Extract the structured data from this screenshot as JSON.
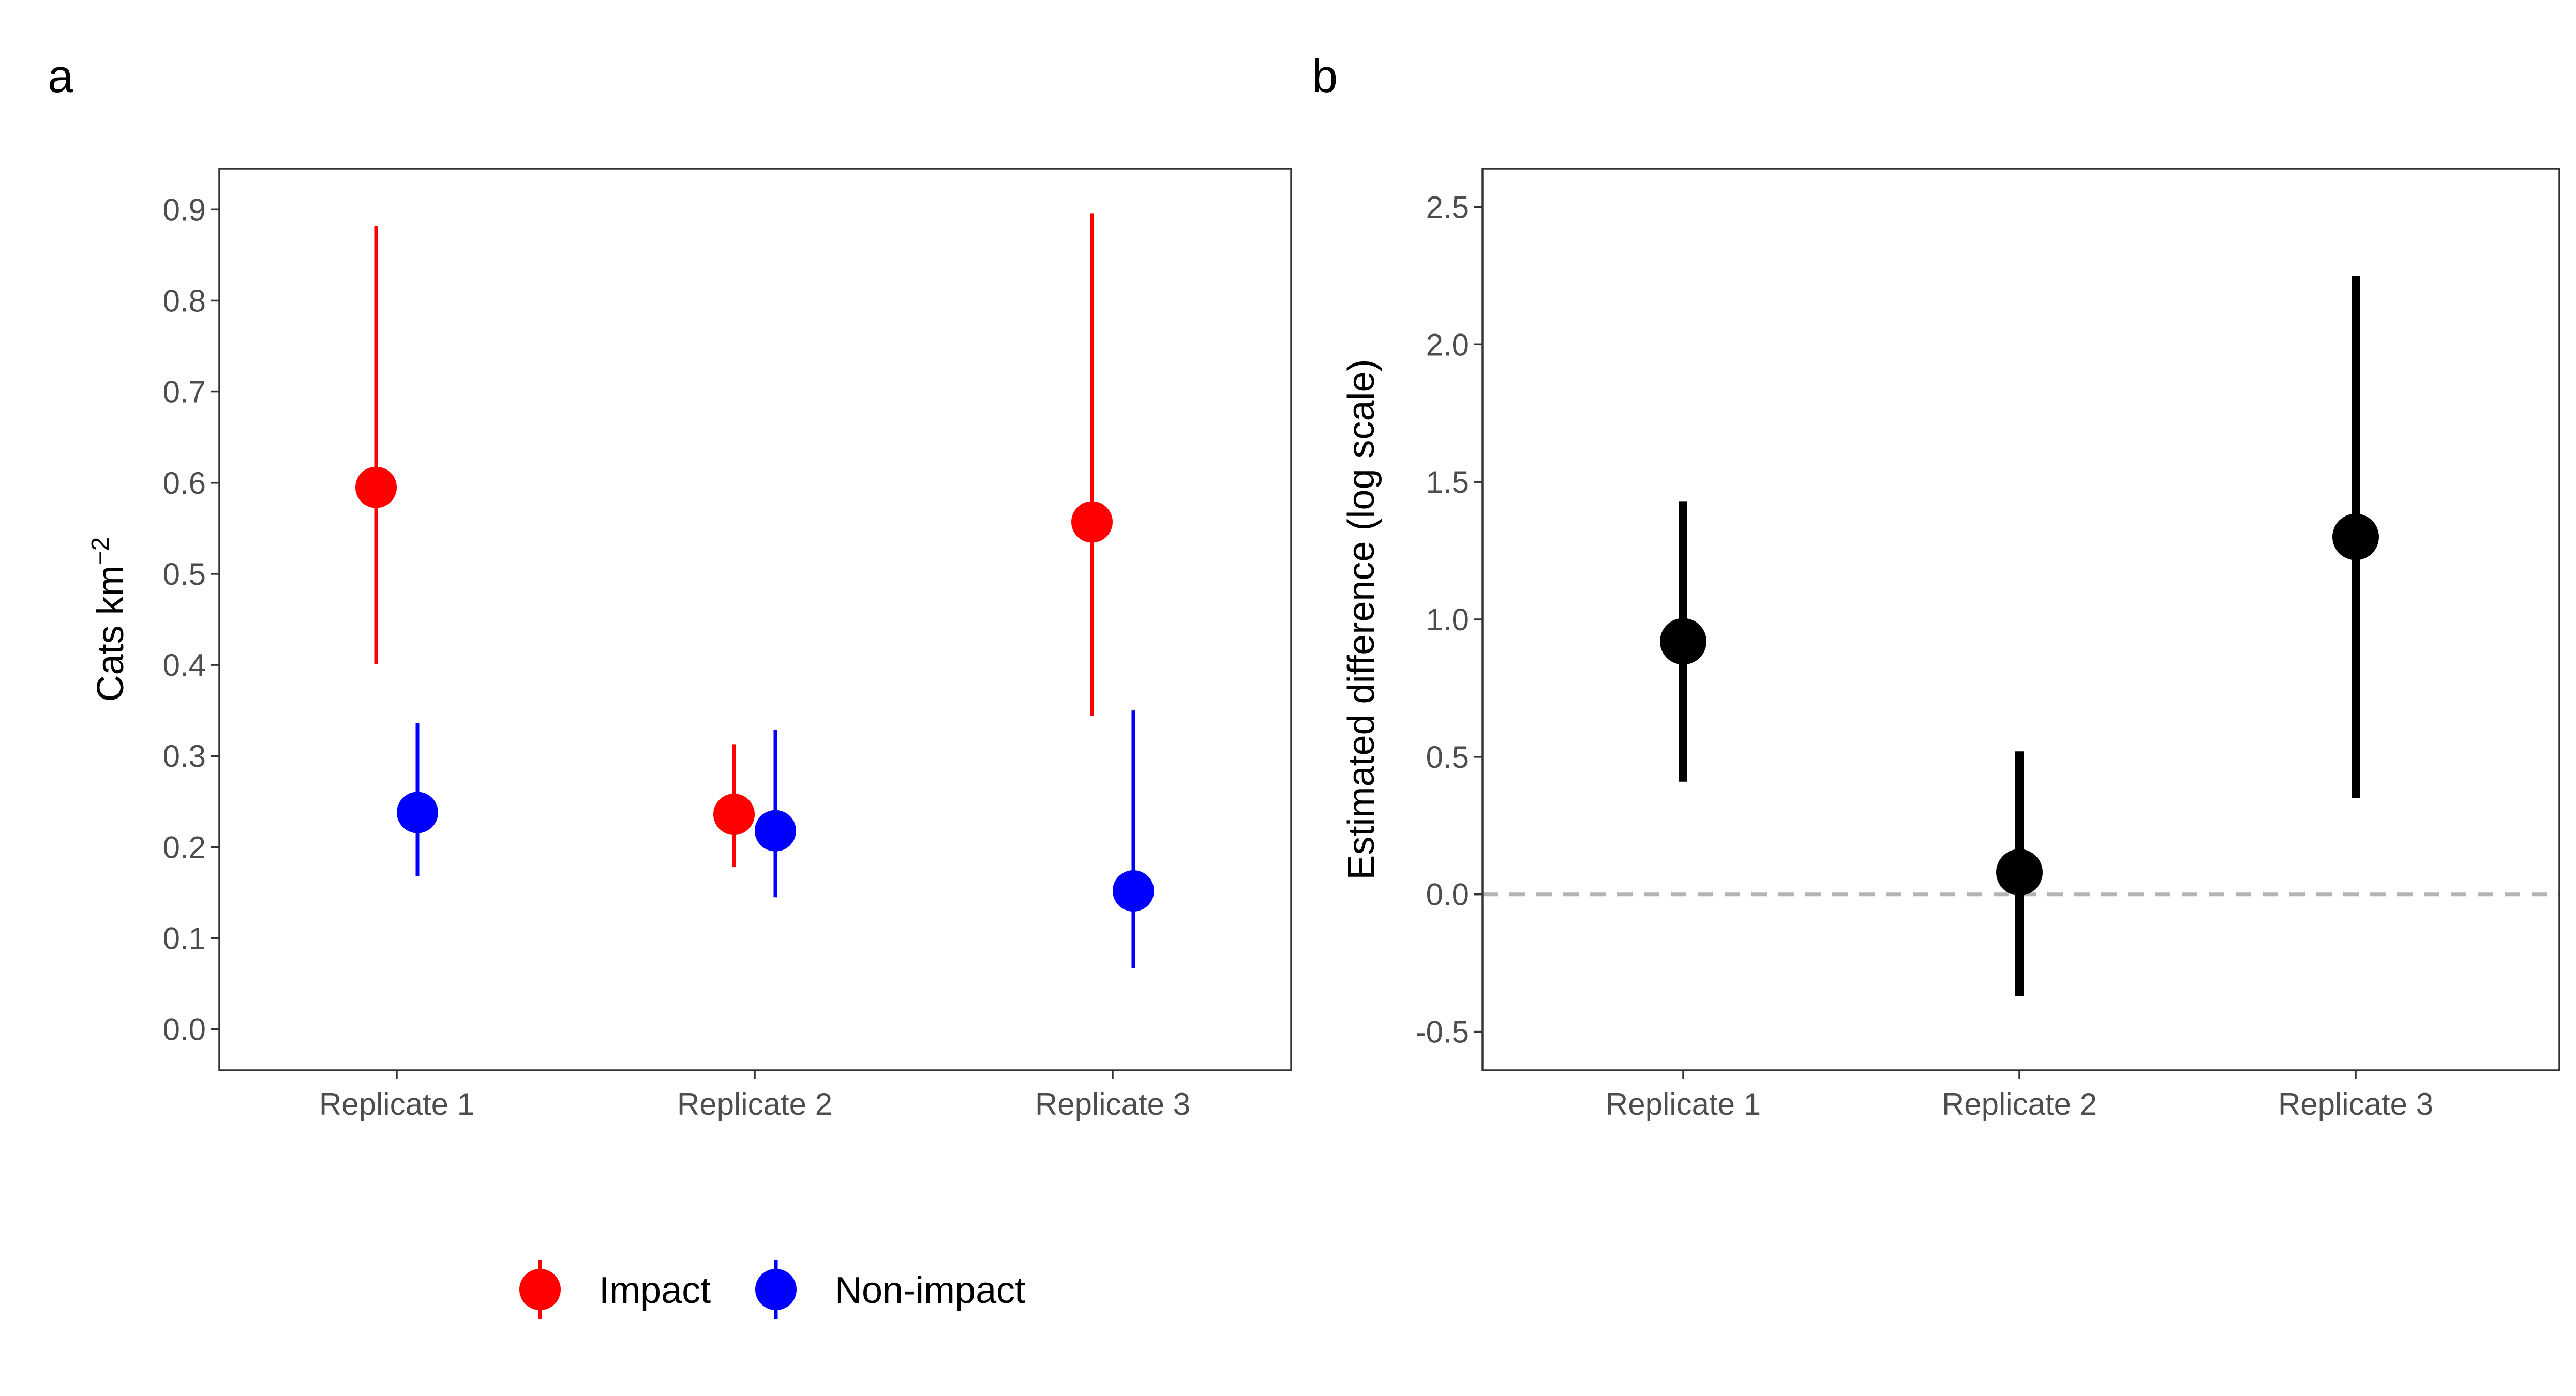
{
  "panel_labels": [
    "a",
    "b"
  ],
  "legend": {
    "items": [
      {
        "label": "Impact",
        "color": "#ff0000"
      },
      {
        "label": "Non-impact",
        "color": "#0000ff"
      }
    ]
  },
  "chart_data": [
    {
      "type": "scatter",
      "panel": "a",
      "categories": [
        "Replicate 1",
        "Replicate 2",
        "Replicate 3"
      ],
      "ylabel": "Cats km",
      "ylabel_superscript": "−2",
      "ylim": [
        -0.045,
        0.945
      ],
      "yticks": [
        0.0,
        0.1,
        0.2,
        0.3,
        0.4,
        0.5,
        0.6,
        0.7,
        0.8,
        0.9
      ],
      "ytick_labels": [
        "0.0",
        "0.1",
        "0.2",
        "0.3",
        "0.4",
        "0.5",
        "0.6",
        "0.7",
        "0.8",
        "0.9"
      ],
      "grid": false,
      "legend_position": "bottom",
      "series": [
        {
          "name": "Impact",
          "color": "#ff0000",
          "values": [
            0.595,
            0.236,
            0.557
          ],
          "lower": [
            0.401,
            0.178,
            0.344
          ],
          "upper": [
            0.882,
            0.313,
            0.896
          ]
        },
        {
          "name": "Non-impact",
          "color": "#0000ff",
          "values": [
            0.238,
            0.218,
            0.152
          ],
          "lower": [
            0.168,
            0.145,
            0.067
          ],
          "upper": [
            0.336,
            0.329,
            0.35
          ]
        }
      ]
    },
    {
      "type": "scatter",
      "panel": "b",
      "categories": [
        "Replicate 1",
        "Replicate 2",
        "Replicate 3"
      ],
      "ylabel": "Estimated difference (log scale)",
      "ylim": [
        -0.64,
        2.64
      ],
      "yticks": [
        -0.5,
        0.0,
        0.5,
        1.0,
        1.5,
        2.0,
        2.5
      ],
      "ytick_labels": [
        "-0.5",
        "0.0",
        "0.5",
        "1.0",
        "1.5",
        "2.0",
        "2.5"
      ],
      "grid": false,
      "reference_line": {
        "y": 0.0,
        "style": "dashed",
        "color": "#b3b3b3"
      },
      "series": [
        {
          "color": "#000000",
          "values": [
            0.92,
            0.08,
            1.3
          ],
          "lower": [
            0.41,
            -0.37,
            0.35
          ],
          "upper": [
            1.43,
            0.52,
            2.25
          ]
        }
      ]
    }
  ]
}
